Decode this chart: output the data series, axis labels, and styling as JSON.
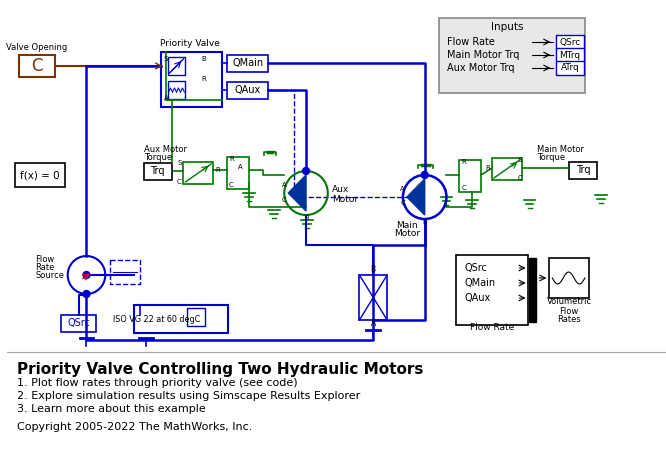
{
  "title": "Priority Valve Controlling Two Hydraulic Motors",
  "items": [
    "1. Plot flow rates through priority valve (see code)",
    "2. Explore simulation results using Simscape Results Explorer",
    "3. Learn more about this example"
  ],
  "copyright": "Copyright 2005-2022 The MathWorks, Inc.",
  "bg_color": "#ffffff",
  "blue": "#0000cc",
  "green": "#007700",
  "brown": "#7a3300",
  "gray": "#888888",
  "black": "#000000",
  "inputs_bg": "#e8e8e8"
}
